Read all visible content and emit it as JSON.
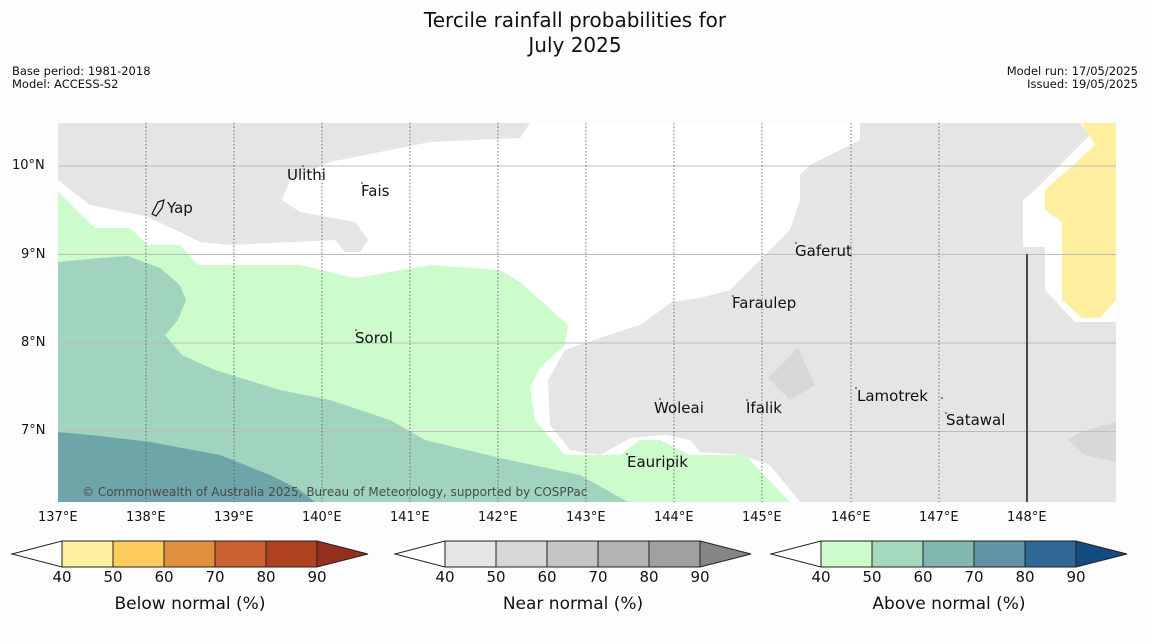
{
  "title_line1": "Tercile rainfall probabilities for",
  "title_line2": "July 2025",
  "meta": {
    "base_period": "Base period: 1981-2018",
    "model": "Model: ACCESS-S2",
    "model_run": "Model run: 17/05/2025",
    "issued": "Issued: 19/05/2025"
  },
  "lat_ticks": [
    "10°N",
    "9°N",
    "8°N",
    "7°N"
  ],
  "lon_ticks": [
    "137°E",
    "138°E",
    "139°E",
    "140°E",
    "141°E",
    "142°E",
    "143°E",
    "144°E",
    "145°E",
    "146°E",
    "147°E",
    "148°E"
  ],
  "places": {
    "yap": "Yap",
    "ulithi": "Ulithi",
    "fais": "Fais",
    "gaferut": "Gaferut",
    "faraulep": "Faraulep",
    "sorol": "Sorol",
    "woleai": "Woleai",
    "ifalik": "Ifalik",
    "lamotrek": "Lamotrek",
    "satawal": "Satawal",
    "eauripik": "Eauripik"
  },
  "copyright": "© Commonwealth of Australia 2025, Bureau of Meteorology, supported by COSPPac",
  "colorbars": [
    {
      "label": "Below normal (%)",
      "ticks": [
        "40",
        "50",
        "60",
        "70",
        "80",
        "90"
      ],
      "colors": [
        "#ffeda0",
        "#fecc5c",
        "#e0903f",
        "#cc6030",
        "#ae4220",
        "#96301e"
      ]
    },
    {
      "label": "Near normal (%)",
      "ticks": [
        "40",
        "50",
        "60",
        "70",
        "80",
        "90"
      ],
      "colors": [
        "#e6e6e6",
        "#d7d7d7",
        "#c5c5c5",
        "#b3b3b3",
        "#a0a0a0",
        "#858585"
      ]
    },
    {
      "label": "Above normal (%)",
      "ticks": [
        "40",
        "50",
        "60",
        "70",
        "80",
        "90"
      ],
      "colors": [
        "#ccfccc",
        "#a4d9bb",
        "#80b8b0",
        "#5e94a4",
        "#2f6797",
        "#154c80"
      ]
    }
  ]
}
